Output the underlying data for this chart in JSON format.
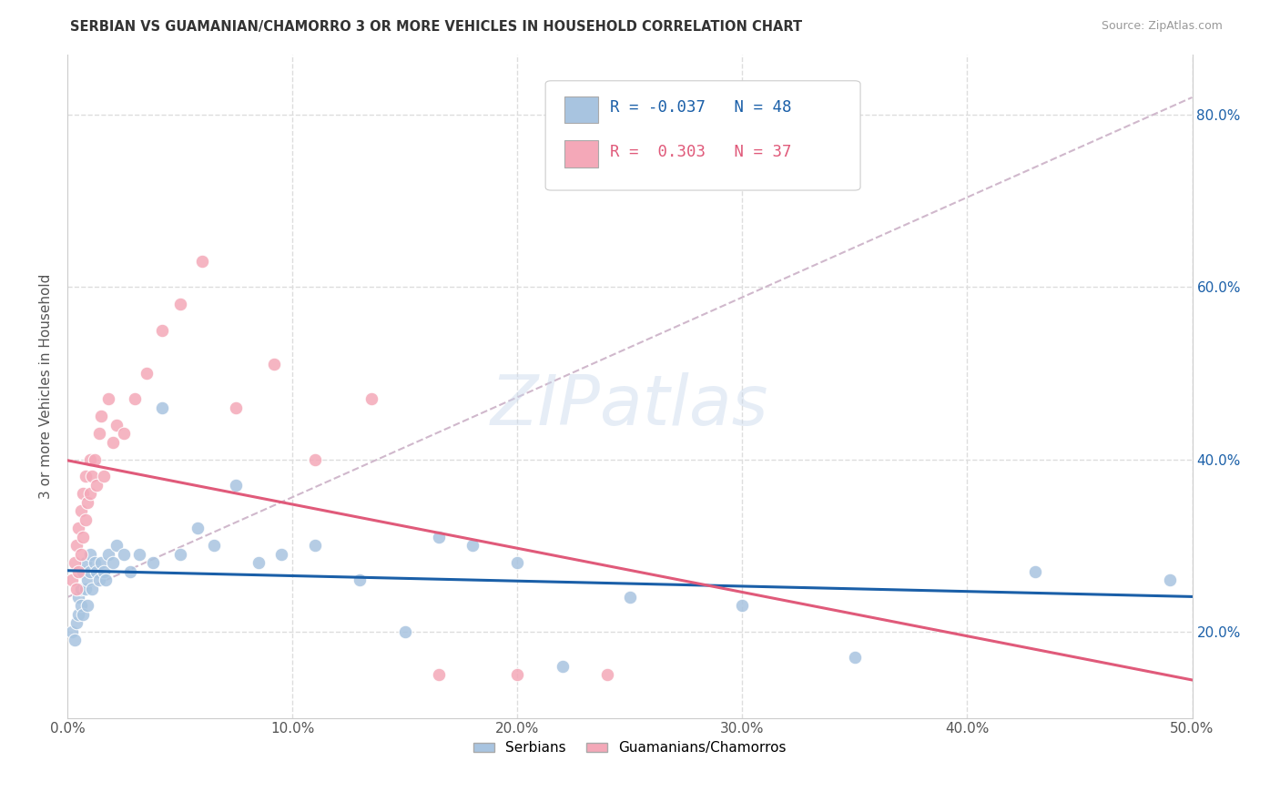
{
  "title": "SERBIAN VS GUAMANIAN/CHAMORRO 3 OR MORE VEHICLES IN HOUSEHOLD CORRELATION CHART",
  "source": "Source: ZipAtlas.com",
  "ylabel": "3 or more Vehicles in Household",
  "xlim": [
    0.0,
    0.5
  ],
  "ylim": [
    0.1,
    0.87
  ],
  "xticks": [
    0.0,
    0.1,
    0.2,
    0.3,
    0.4,
    0.5
  ],
  "yticks": [
    0.2,
    0.4,
    0.6,
    0.8
  ],
  "xticklabels": [
    "0.0%",
    "10.0%",
    "20.0%",
    "30.0%",
    "40.0%",
    "50.0%"
  ],
  "yticklabels": [
    "20.0%",
    "40.0%",
    "60.0%",
    "80.0%"
  ],
  "legend_labels": [
    "Serbians",
    "Guamanians/Chamorros"
  ],
  "R_serbian": -0.037,
  "N_serbian": 48,
  "R_guamanian": 0.303,
  "N_guamanian": 37,
  "serbian_color": "#a8c4e0",
  "guamanian_color": "#f4a8b8",
  "serbian_line_color": "#1a5fa8",
  "guamanian_line_color": "#e05a7a",
  "dashed_line_color": "#d0b8cc",
  "watermark": "ZIPatlas",
  "background_color": "#ffffff",
  "grid_color": "#dddddd",
  "serbian_x": [
    0.002,
    0.003,
    0.004,
    0.005,
    0.005,
    0.006,
    0.006,
    0.007,
    0.007,
    0.008,
    0.008,
    0.009,
    0.009,
    0.01,
    0.01,
    0.011,
    0.012,
    0.013,
    0.014,
    0.015,
    0.016,
    0.017,
    0.018,
    0.02,
    0.022,
    0.025,
    0.028,
    0.032,
    0.038,
    0.042,
    0.05,
    0.058,
    0.065,
    0.075,
    0.085,
    0.095,
    0.11,
    0.13,
    0.15,
    0.165,
    0.18,
    0.2,
    0.22,
    0.25,
    0.3,
    0.35,
    0.43,
    0.49
  ],
  "serbian_y": [
    0.2,
    0.19,
    0.21,
    0.22,
    0.24,
    0.23,
    0.25,
    0.22,
    0.27,
    0.25,
    0.28,
    0.26,
    0.23,
    0.27,
    0.29,
    0.25,
    0.28,
    0.27,
    0.26,
    0.28,
    0.27,
    0.26,
    0.29,
    0.28,
    0.3,
    0.29,
    0.27,
    0.29,
    0.28,
    0.46,
    0.29,
    0.32,
    0.3,
    0.37,
    0.28,
    0.29,
    0.3,
    0.26,
    0.2,
    0.31,
    0.3,
    0.28,
    0.16,
    0.24,
    0.23,
    0.17,
    0.27,
    0.26
  ],
  "guamanian_x": [
    0.002,
    0.003,
    0.004,
    0.004,
    0.005,
    0.005,
    0.006,
    0.006,
    0.007,
    0.007,
    0.008,
    0.008,
    0.009,
    0.01,
    0.01,
    0.011,
    0.012,
    0.013,
    0.014,
    0.015,
    0.016,
    0.018,
    0.02,
    0.022,
    0.025,
    0.03,
    0.035,
    0.042,
    0.05,
    0.06,
    0.075,
    0.092,
    0.11,
    0.135,
    0.165,
    0.2,
    0.24
  ],
  "guamanian_y": [
    0.26,
    0.28,
    0.25,
    0.3,
    0.27,
    0.32,
    0.29,
    0.34,
    0.31,
    0.36,
    0.33,
    0.38,
    0.35,
    0.36,
    0.4,
    0.38,
    0.4,
    0.37,
    0.43,
    0.45,
    0.38,
    0.47,
    0.42,
    0.44,
    0.43,
    0.47,
    0.5,
    0.55,
    0.58,
    0.63,
    0.46,
    0.51,
    0.4,
    0.47,
    0.15,
    0.15,
    0.15
  ]
}
